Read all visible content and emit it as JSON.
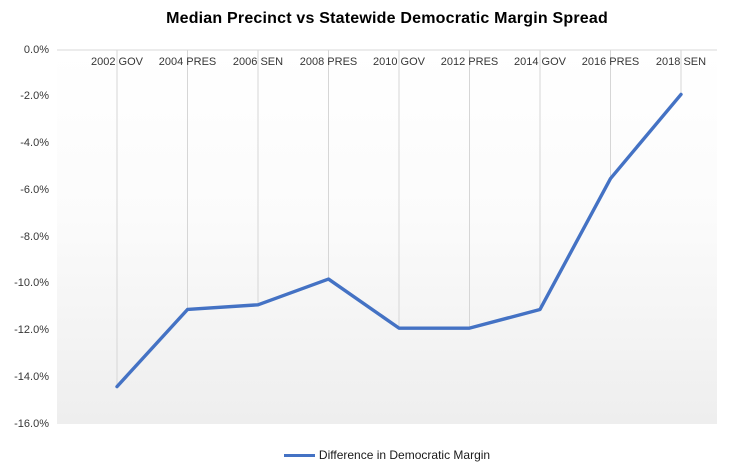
{
  "chart_data": {
    "type": "line",
    "title": "Median Precinct vs Statewide Democratic Margin Spread",
    "categories": [
      "2002 GOV",
      "2004 PRES",
      "2006 SEN",
      "2008 PRES",
      "2010 GOV",
      "2012 PRES",
      "2014 GOV",
      "2016 PRES",
      "2018 SEN"
    ],
    "series": [
      {
        "name": "Difference in Democratic Margin",
        "values": [
          -14.4,
          -11.1,
          -10.9,
          -9.8,
          -11.9,
          -11.9,
          -11.1,
          -5.5,
          -1.9
        ]
      }
    ],
    "y_ticks": [
      "0.0%",
      "-2.0%",
      "-4.0%",
      "-6.0%",
      "-8.0%",
      "-10.0%",
      "-12.0%",
      "-14.0%",
      "-16.0%"
    ],
    "ylim": [
      -16,
      0
    ],
    "xlabel": "",
    "ylabel": "",
    "grid": "vertical-drop-lines-only",
    "legend": {
      "position": "bottom-center"
    },
    "colors": {
      "line": "#4472C4",
      "gridline": "#D6D6D6",
      "zero_axis": "#D9D9D9",
      "axis_text": "#373737",
      "title_text": "#000000",
      "plot_bg_top": "#FFFFFF",
      "plot_bg_bottom": "#EEEEEE"
    }
  }
}
